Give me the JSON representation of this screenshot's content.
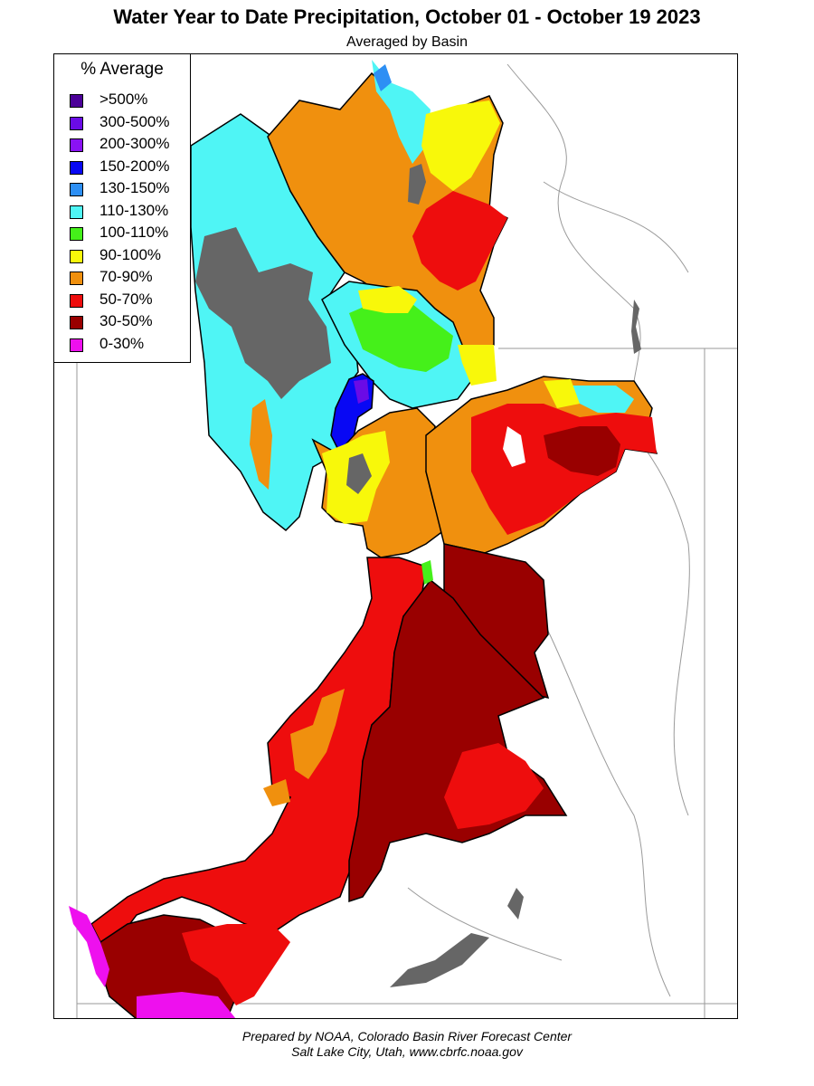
{
  "title": "Water Year to Date Precipitation, October 01  - October 19 2023",
  "subtitle": "Averaged by Basin",
  "legend": {
    "title": "% Average",
    "items": [
      {
        "label": ">500%",
        "color": "#4b0098"
      },
      {
        "label": "300-500%",
        "color": "#6a0be6"
      },
      {
        "label": "200-300%",
        "color": "#8a12f4"
      },
      {
        "label": "150-200%",
        "color": "#0808f4"
      },
      {
        "label": "130-150%",
        "color": "#2d8ff4"
      },
      {
        "label": "110-130%",
        "color": "#4ff5f5"
      },
      {
        "label": "100-110%",
        "color": "#45f01a"
      },
      {
        "label": "90-100%",
        "color": "#f8f80a"
      },
      {
        "label": "70-90%",
        "color": "#f0900e"
      },
      {
        "label": "50-70%",
        "color": "#ee0d0d"
      },
      {
        "label": "30-50%",
        "color": "#990000"
      },
      {
        "label": "0-30%",
        "color": "#ee10ee"
      }
    ]
  },
  "map": {
    "no_data_color": "#666666",
    "boundary_color": "#000000",
    "background_color": "#ffffff"
  },
  "footer": {
    "line1": "Prepared by NOAA, Colorado Basin River Forecast Center",
    "line2": "Salt Lake City, Utah, www.cbrfc.noaa.gov"
  }
}
